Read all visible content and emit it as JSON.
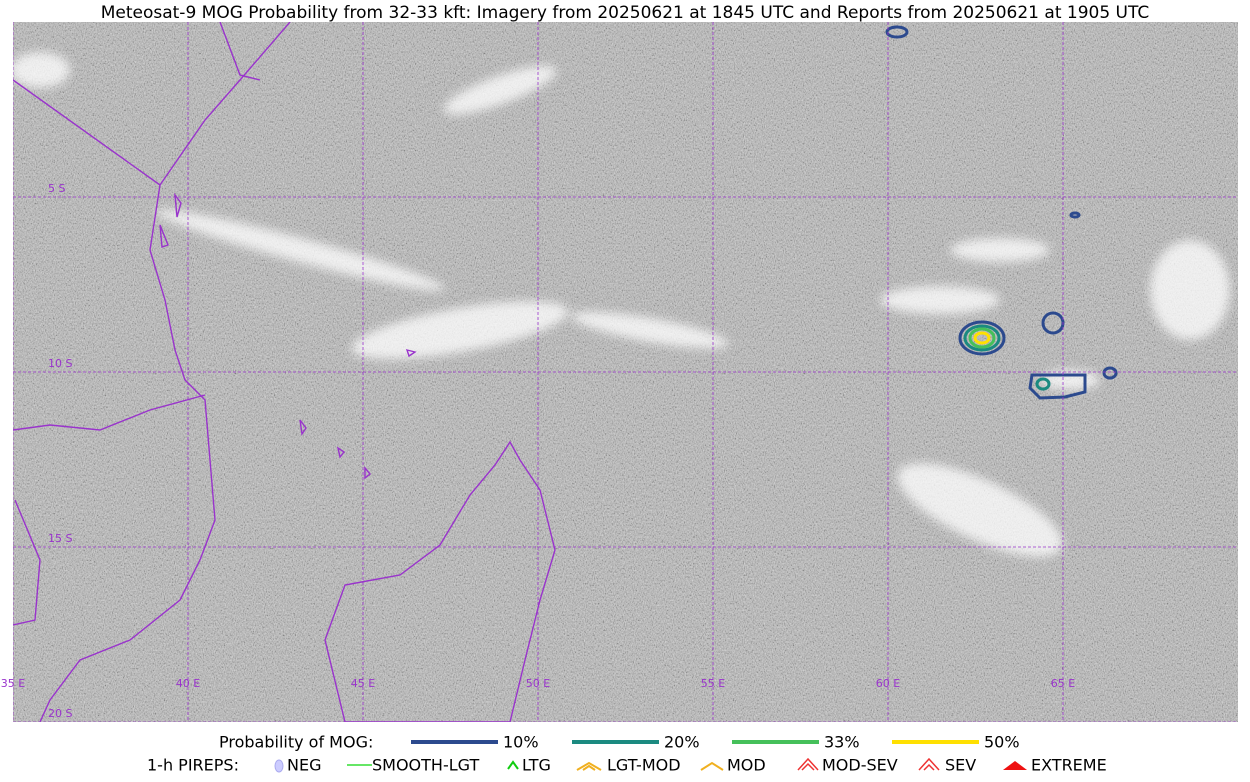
{
  "title": "Meteosat-9 MOG Probability from 32-33 kft: Imagery from 20250621 at 1845 UTC and Reports from 20250621 at 1905 UTC",
  "map": {
    "lat_labels": [
      "5 S",
      "10 S",
      "15 S",
      "20 S"
    ],
    "lon_labels": [
      "35 E",
      "40 E",
      "45 E",
      "50 E",
      "55 E",
      "60 E",
      "65 E"
    ]
  },
  "legend": {
    "probability": {
      "title": "Probability of MOG:",
      "items": [
        {
          "label": "10%",
          "color": "#2c4a8e"
        },
        {
          "label": "20%",
          "color": "#1b8a80"
        },
        {
          "label": "33%",
          "color": "#45c05a"
        },
        {
          "label": "50%",
          "color": "#ffe000"
        }
      ]
    },
    "pireps": {
      "title": "1-h PIREPS:",
      "items": [
        "NEG",
        "SMOOTH-LGT",
        "LTG",
        "LGT-MOD",
        "MOD",
        "MOD-SEV",
        "SEV",
        "EXTREME"
      ]
    }
  }
}
